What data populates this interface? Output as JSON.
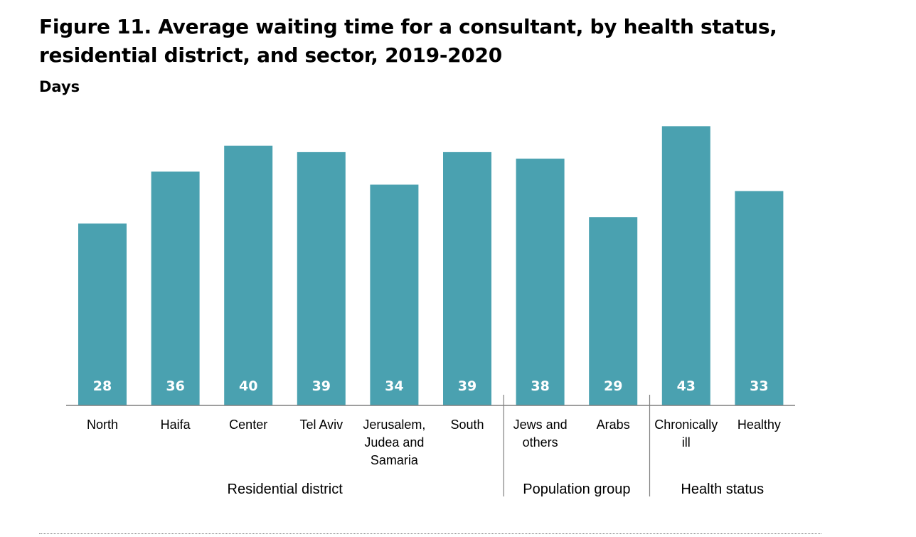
{
  "title": "Figure 11. Average waiting time for a consultant, by health status, residential district, and sector, 2019-2020",
  "subtitle": "Days",
  "colors": {
    "bar": "#4aa1b0",
    "value_label": "#ffffff",
    "axis": "#7f7f7f"
  },
  "chart_data": {
    "type": "bar",
    "title": "Figure 11. Average waiting time for a consultant, by health status, residential district, and sector, 2019-2020",
    "ylabel": "Days",
    "ylim": [
      0,
      46
    ],
    "grid": false,
    "legend": "none",
    "categories": [
      "North",
      "Haifa",
      "Center",
      "Tel Aviv",
      "Jerusalem, Judea and Samaria",
      "South",
      "Jews and others",
      "Arabs",
      "Chronically ill",
      "Healthy"
    ],
    "category_lines": [
      [
        "North"
      ],
      [
        "Haifa"
      ],
      [
        "Center"
      ],
      [
        "Tel Aviv"
      ],
      [
        "Jerusalem,",
        "Judea and",
        "Samaria"
      ],
      [
        "South"
      ],
      [
        "Jews and",
        "others"
      ],
      [
        "Arabs"
      ],
      [
        "Chronically",
        "ill"
      ],
      [
        "Healthy"
      ]
    ],
    "values": [
      28,
      36,
      40,
      39,
      34,
      39,
      38,
      29,
      43,
      33
    ],
    "groups": [
      {
        "name": "Residential district",
        "start": 0,
        "end": 5
      },
      {
        "name": "Population group",
        "start": 6,
        "end": 7
      },
      {
        "name": "Health status",
        "start": 8,
        "end": 9
      }
    ]
  }
}
